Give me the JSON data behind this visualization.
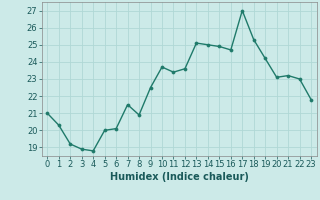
{
  "x": [
    0,
    1,
    2,
    3,
    4,
    5,
    6,
    7,
    8,
    9,
    10,
    11,
    12,
    13,
    14,
    15,
    16,
    17,
    18,
    19,
    20,
    21,
    22,
    23
  ],
  "y": [
    21.0,
    20.3,
    19.2,
    18.9,
    18.8,
    20.0,
    20.1,
    21.5,
    20.9,
    22.5,
    23.7,
    23.4,
    23.6,
    25.1,
    25.0,
    24.9,
    24.7,
    27.0,
    25.3,
    24.2,
    23.1,
    23.2,
    23.0,
    21.8
  ],
  "line_color": "#1f7a6a",
  "marker": "o",
  "markersize": 2.2,
  "linewidth": 1.0,
  "bg_color": "#cceae8",
  "grid_color": "#b0d8d5",
  "xlabel": "Humidex (Indice chaleur)",
  "xlim": [
    -0.5,
    23.5
  ],
  "ylim": [
    18.5,
    27.5
  ],
  "yticks": [
    19,
    20,
    21,
    22,
    23,
    24,
    25,
    26,
    27
  ],
  "xticks": [
    0,
    1,
    2,
    3,
    4,
    5,
    6,
    7,
    8,
    9,
    10,
    11,
    12,
    13,
    14,
    15,
    16,
    17,
    18,
    19,
    20,
    21,
    22,
    23
  ],
  "label_fontsize": 7,
  "tick_fontsize": 6
}
